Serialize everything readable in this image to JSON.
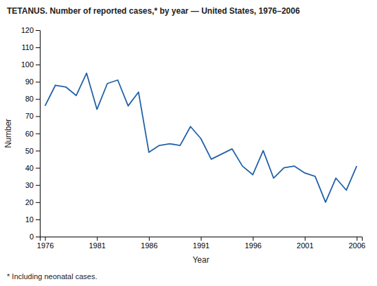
{
  "chart_data": {
    "type": "line",
    "title": "TETANUS. Number of reported cases,* by year — United States, 1976–2006",
    "footnote": "* Including neonatal cases.",
    "xlabel": "Year",
    "ylabel": "Number",
    "x": [
      1976,
      1977,
      1978,
      1979,
      1980,
      1981,
      1982,
      1983,
      1984,
      1985,
      1986,
      1987,
      1988,
      1989,
      1990,
      1991,
      1992,
      1993,
      1994,
      1995,
      1996,
      1997,
      1998,
      1999,
      2000,
      2001,
      2002,
      2003,
      2004,
      2005,
      2006
    ],
    "values": [
      76,
      88,
      87,
      82,
      95,
      74,
      89,
      91,
      76,
      84,
      49,
      53,
      54,
      53,
      64,
      57,
      45,
      48,
      51,
      41,
      36,
      50,
      34,
      40,
      41,
      37,
      35,
      20,
      34,
      27,
      41
    ],
    "color": "#2060a8",
    "xlim": [
      1975.5,
      2006.5
    ],
    "xticks": [
      1976,
      1981,
      1986,
      1991,
      1996,
      2001,
      2006
    ],
    "ylim": [
      0,
      120
    ],
    "yticks": [
      0,
      10,
      20,
      30,
      40,
      50,
      60,
      70,
      80,
      90,
      100,
      110,
      120
    ],
    "grid": false
  }
}
